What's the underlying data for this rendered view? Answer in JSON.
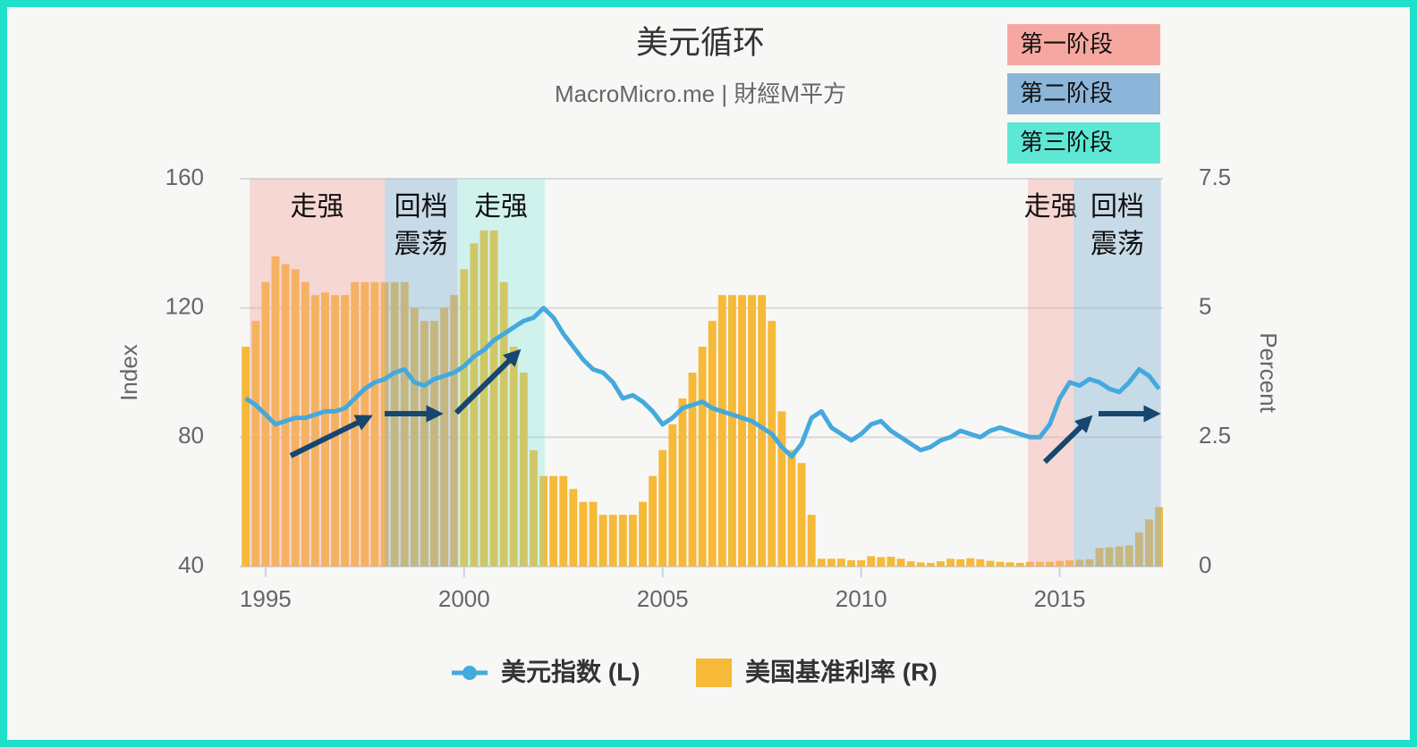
{
  "chart_data": {
    "type": "line",
    "title": "美元循环",
    "subtitle": "MacroMicro.me | 財經M平方",
    "y_label": "Index",
    "y2_label": "Percent",
    "xlim": [
      1994.35,
      2017.6
    ],
    "xticks": [
      1995,
      2000,
      2005,
      2010,
      2015
    ],
    "ylim": [
      40,
      160
    ],
    "yticks": [
      40,
      80,
      120,
      160
    ],
    "y2lim": [
      0,
      7.5
    ],
    "y2ticks": [
      0,
      2.5,
      5,
      7.5
    ],
    "grid": true,
    "x": [
      1994.5,
      1994.75,
      1995,
      1995.25,
      1995.5,
      1995.75,
      1996,
      1996.25,
      1996.5,
      1996.75,
      1997,
      1997.25,
      1997.5,
      1997.75,
      1998,
      1998.25,
      1998.5,
      1998.75,
      1999,
      1999.25,
      1999.5,
      1999.75,
      2000,
      2000.25,
      2000.5,
      2000.75,
      2001,
      2001.25,
      2001.5,
      2001.75,
      2002,
      2002.25,
      2002.5,
      2002.75,
      2003,
      2003.25,
      2003.5,
      2003.75,
      2004,
      2004.25,
      2004.5,
      2004.75,
      2005,
      2005.25,
      2005.5,
      2005.75,
      2006,
      2006.25,
      2006.5,
      2006.75,
      2007,
      2007.25,
      2007.5,
      2007.75,
      2008,
      2008.25,
      2008.5,
      2008.75,
      2009,
      2009.25,
      2009.5,
      2009.75,
      2010,
      2010.25,
      2010.5,
      2010.75,
      2011,
      2011.25,
      2011.5,
      2011.75,
      2012,
      2012.25,
      2012.5,
      2012.75,
      2013,
      2013.25,
      2013.5,
      2013.75,
      2014,
      2014.25,
      2014.5,
      2014.75,
      2015,
      2015.25,
      2015.5,
      2015.75,
      2016,
      2016.25,
      2016.5,
      2016.75,
      2017,
      2017.25,
      2017.5
    ],
    "series": [
      {
        "name": "美元指数 (L)",
        "type": "line",
        "color": "#44a9dd",
        "values": [
          92,
          90,
          87,
          84,
          85,
          86,
          86,
          87,
          88,
          88,
          89,
          92,
          95,
          97,
          98,
          100,
          101,
          97,
          96,
          98,
          99,
          100,
          102,
          105,
          107,
          110,
          112,
          114,
          116,
          117,
          120,
          117,
          112,
          108,
          104,
          101,
          100,
          97,
          92,
          93,
          91,
          88,
          84,
          86,
          89,
          90,
          91,
          89,
          88,
          87,
          86,
          85,
          83,
          81,
          77,
          74,
          78,
          86,
          88,
          83,
          81,
          79,
          81,
          84,
          85,
          82,
          80,
          78,
          76,
          77,
          79,
          80,
          82,
          81,
          80,
          82,
          83,
          82,
          81,
          80,
          80,
          84,
          92,
          97,
          96,
          98,
          97,
          95,
          94,
          97,
          101,
          99,
          95
        ]
      },
      {
        "name": "美国基准利率 (R)",
        "type": "bar",
        "axis": "y2",
        "color": "#f6b938",
        "values": [
          4.25,
          4.75,
          5.5,
          6.0,
          5.85,
          5.75,
          5.5,
          5.25,
          5.3,
          5.25,
          5.25,
          5.5,
          5.5,
          5.5,
          5.5,
          5.5,
          5.5,
          5.0,
          4.75,
          4.75,
          5.0,
          5.25,
          5.75,
          6.25,
          6.5,
          6.5,
          5.5,
          4.25,
          3.75,
          2.25,
          1.75,
          1.75,
          1.75,
          1.5,
          1.25,
          1.25,
          1.0,
          1.0,
          1.0,
          1.0,
          1.25,
          1.75,
          2.25,
          2.75,
          3.25,
          3.75,
          4.25,
          4.75,
          5.25,
          5.25,
          5.25,
          5.25,
          5.25,
          4.75,
          3.0,
          2.25,
          2.0,
          1.0,
          0.15,
          0.15,
          0.15,
          0.12,
          0.12,
          0.2,
          0.18,
          0.19,
          0.15,
          0.1,
          0.08,
          0.07,
          0.1,
          0.15,
          0.14,
          0.16,
          0.14,
          0.11,
          0.09,
          0.08,
          0.07,
          0.09,
          0.09,
          0.09,
          0.11,
          0.12,
          0.13,
          0.14,
          0.36,
          0.37,
          0.39,
          0.41,
          0.66,
          0.91,
          1.15
        ]
      }
    ],
    "periods": [
      {
        "start": 1994.6,
        "end": 1998.0,
        "color": "rgba(246,168,160,0.4)",
        "label": [
          "走强"
        ]
      },
      {
        "start": 1998.0,
        "end": 1999.83,
        "color": "rgba(140,182,217,0.45)",
        "label": [
          "回档",
          "震荡"
        ]
      },
      {
        "start": 1999.83,
        "end": 2002.03,
        "color": "rgba(120,232,214,0.3)",
        "label": [
          "走强"
        ]
      },
      {
        "start": 2014.2,
        "end": 2015.35,
        "color": "rgba(246,168,160,0.4)",
        "label": [
          "走强"
        ]
      },
      {
        "start": 2015.35,
        "end": 2017.55,
        "color": "rgba(140,182,217,0.45)",
        "label": [
          "回档",
          "震荡"
        ]
      }
    ],
    "phase_legend": [
      {
        "name": "第一阶段",
        "color": "#f6a8a0"
      },
      {
        "name": "第二阶段",
        "color": "#8cb6d9"
      },
      {
        "name": "第三阶段",
        "color": "#5de8d6"
      }
    ]
  }
}
